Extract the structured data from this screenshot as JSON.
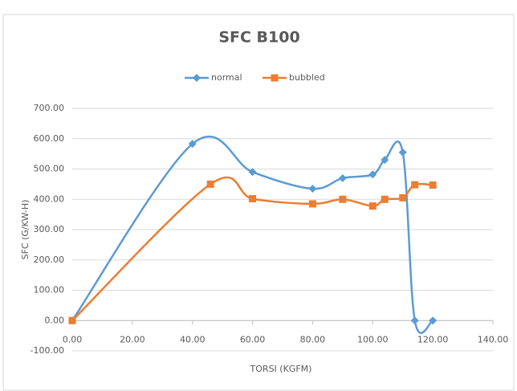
{
  "chart_data": {
    "type": "line",
    "title": "SFC B100",
    "x_label": "TORSI (KGFM)",
    "y_label": "SFC (G/KW-H)",
    "xlim": [
      0,
      140
    ],
    "xticks": [
      {
        "value": 0,
        "label": "0.00"
      },
      {
        "value": 20,
        "label": "20.00"
      },
      {
        "value": 40,
        "label": "40.00"
      },
      {
        "value": 60,
        "label": "60.00"
      },
      {
        "value": 80,
        "label": "80.00"
      },
      {
        "value": 100,
        "label": "100.00"
      },
      {
        "value": 120,
        "label": "120.00"
      },
      {
        "value": 140,
        "label": "140.00"
      }
    ],
    "ylim": [
      -100,
      700
    ],
    "yticks": [
      {
        "value": -100,
        "label": "-100.00"
      },
      {
        "value": 0,
        "label": "0.00"
      },
      {
        "value": 100,
        "label": "100.00"
      },
      {
        "value": 200,
        "label": "200.00"
      },
      {
        "value": 300,
        "label": "300.00"
      },
      {
        "value": 400,
        "label": "400.00"
      },
      {
        "value": 500,
        "label": "500.00"
      },
      {
        "value": 600,
        "label": "600.00"
      },
      {
        "value": 700,
        "label": "700.00"
      }
    ],
    "grid": true,
    "smooth": true,
    "legend": "top",
    "series": [
      {
        "name": "normal",
        "color": "#5b9bd5",
        "marker": "diamond",
        "x": [
          0,
          40,
          60,
          80,
          90,
          100,
          104,
          110,
          114,
          120
        ],
        "values": [
          0,
          583,
          490,
          435,
          470,
          482,
          530,
          555,
          0,
          0
        ]
      },
      {
        "name": "bubbled",
        "color": "#ed7d31",
        "marker": "square",
        "x": [
          0,
          46,
          60,
          80,
          90,
          100,
          104,
          110,
          114,
          120
        ],
        "values": [
          0,
          450,
          402,
          385,
          400,
          378,
          400,
          405,
          448,
          447
        ]
      }
    ]
  }
}
